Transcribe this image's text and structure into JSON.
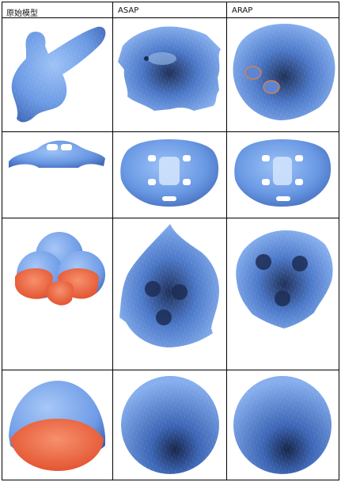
{
  "table": {
    "headers": [
      "原始模型",
      "ASAP",
      "ARAP"
    ],
    "rows": [
      {
        "original": "original-model-1",
        "asap": "asap-parameterization-1",
        "arap": "arap-parameterization-1"
      },
      {
        "original": "original-model-2",
        "asap": "asap-parameterization-2",
        "arap": "arap-parameterization-2"
      },
      {
        "original": "original-model-3",
        "asap": "asap-parameterization-3",
        "arap": "arap-parameterization-3"
      },
      {
        "original": "original-model-4",
        "asap": "asap-parameterization-4",
        "arap": "arap-parameterization-4"
      }
    ]
  },
  "colors": {
    "mesh_blue": "#6f9ee8",
    "mesh_dark": "#1d2e55",
    "boundary_orange": "#f26a44",
    "grid_line": "#000000"
  }
}
